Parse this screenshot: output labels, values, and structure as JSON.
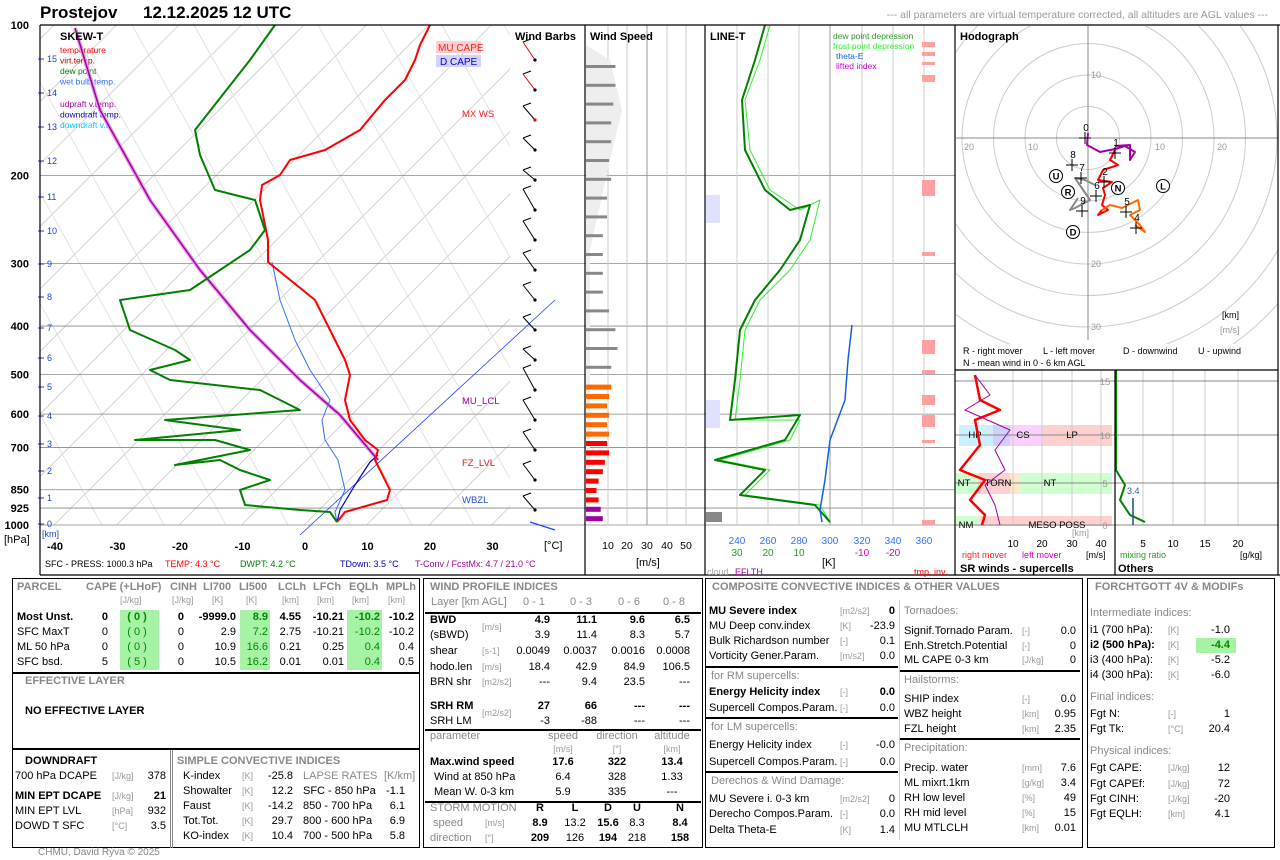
{
  "header": {
    "station": "Prostejov",
    "datetime": "12.12.2025 12 UTC",
    "note": "--- all parameters are virtual temperature corrected, all altitudes are AGL values ---"
  },
  "colors": {
    "temperature": "#ff0000",
    "virt_temp": "#b00000",
    "dew_point": "#008000",
    "wet_bulb": "#3070ff",
    "updraft": "#a000a0",
    "downdraft": "#0000c0",
    "downdraft_vt": "#00c8ff",
    "frost": "#33ee33",
    "theta_e": "#1060e0",
    "lifted_index": "#cc00cc"
  },
  "skewt": {
    "title": "SKEW-T",
    "legend": [
      {
        "label": "temperature",
        "color": "#ff0000"
      },
      {
        "label": "virt.temp.",
        "color": "#b00000"
      },
      {
        "label": "dew point",
        "color": "#008000"
      },
      {
        "label": "wet bulb temp.",
        "color": "#3070ff"
      },
      {
        "label": "udpraft v.temp.",
        "color": "#a000a0"
      },
      {
        "label": "downdraft temp.",
        "color": "#0000c0"
      },
      {
        "label": "downdraft v.t.",
        "color": "#00c8ff"
      }
    ],
    "pressure_labels": [
      "100",
      "200",
      "300",
      "400",
      "500",
      "600",
      "700",
      "850",
      "925",
      "1000"
    ],
    "pressure_unit": "[hPa]",
    "km_labels": [
      "15",
      "14",
      "13",
      "12",
      "11",
      "10",
      "9",
      "8",
      "7",
      "6",
      "5",
      "4",
      "3",
      "2",
      "1",
      "0"
    ],
    "km_unit": "[km]",
    "temp_ticks": [
      "-40",
      "-30",
      "-20",
      "-10",
      "0",
      "10",
      "20",
      "30"
    ],
    "temp_unit": "[°C]",
    "mu_cape": "MU CAPE",
    "d_cape": "D CAPE",
    "mx_ws": "MX WS",
    "mu_lcl": "MU_LCL",
    "fz_lvl": "FZ_LVL",
    "wbzl": "WBZL",
    "sfc_press": "SFC - PRESS: 1000.3 hPa",
    "sfc_temp": "TEMP: 4.3 °C",
    "sfc_dwpt": "DWPT: 4.2 °C",
    "sfc_tdown": "TDown: 3.5 °C",
    "sfc_tconv": "T-Conv / FcstMx: 4.7 / 21.0 °C"
  },
  "wind_barbs": {
    "title": "Wind Barbs"
  },
  "wind_speed": {
    "title": "Wind Speed",
    "ticks": [
      "10",
      "20",
      "30",
      "40",
      "50"
    ],
    "unit": "[m/s]"
  },
  "line_t": {
    "title": "LINE-T",
    "legend": [
      {
        "label": "dew point depression",
        "color": "#2a9a2a"
      },
      {
        "label": "frost point depression",
        "color": "#33ee33"
      },
      {
        "label": "theta-E",
        "color": "#1060e0"
      },
      {
        "label": "lifted index",
        "color": "#cc00cc"
      }
    ],
    "ticks_k": [
      "240",
      "260",
      "280",
      "300",
      "320",
      "340",
      "360"
    ],
    "ticks_dd": [
      "30",
      "20",
      "10"
    ],
    "ticks_li": [
      "-10",
      "-20"
    ],
    "unit": "[K]",
    "cloud": "cloud",
    "eflth": "EFLTH",
    "tmp_inv": "tmp. inv."
  },
  "hodograph": {
    "title": "Hodograph",
    "ring_labels": [
      "20",
      "10",
      "10",
      "20",
      "10",
      "20",
      "30"
    ],
    "km_marks": [
      "0",
      "1",
      "2",
      "4",
      "5",
      "6",
      "7",
      "8",
      "9"
    ],
    "markers": [
      "R",
      "L",
      "D",
      "U",
      "N"
    ],
    "unit_km": "[km]",
    "unit_ms": "[m/s]",
    "legend": [
      "R - right mover",
      "L - left mover",
      "D - downwind",
      "U - upwind",
      "N - mean wind in 0 - 6 km AGL"
    ]
  },
  "sr_winds": {
    "title": "SR winds - supercells",
    "ticks": [
      "10",
      "20",
      "30",
      "40"
    ],
    "km_ticks": [
      "15",
      "10",
      "5",
      "0"
    ],
    "unit_km": "[km]",
    "unit": "[m/s]",
    "right_mover": "right mover",
    "left_mover": "left mover",
    "zones": [
      "HP",
      "CS",
      "LP",
      "NT",
      "TORN",
      "NT",
      "NM",
      "MESO POSS"
    ]
  },
  "others": {
    "title": "Others",
    "ticks": [
      "5",
      "10",
      "15",
      "20"
    ],
    "unit": "[g/kg]",
    "mixing_ratio": "mixing ratio",
    "value": "3.4"
  },
  "parcel": {
    "headers": [
      "PARCEL",
      "CAPE (+LHoF)",
      "CINH",
      "LI700",
      "LI500",
      "LCLh",
      "LFCh",
      "EQLh",
      "MPLh"
    ],
    "units": [
      "[J/kg]",
      "[J/kg]",
      "[K]",
      "[K]",
      "[km]",
      "[km]",
      "[km]",
      "[km]"
    ],
    "rows": [
      {
        "name": "Most Unst.",
        "cape": "0",
        "lhof": "( 0 )",
        "cinh": "0",
        "li700": "-9999.0",
        "li500": "8.9",
        "lclh": "4.55",
        "lfch": "-10.21",
        "eqlh": "-10.2",
        "mplh": "-10.2"
      },
      {
        "name": "SFC MaxT",
        "cape": "0",
        "lhof": "( 0 )",
        "cinh": "0",
        "li700": "2.9",
        "li500": "7.2",
        "lclh": "2.75",
        "lfch": "-10.21",
        "eqlh": "-10.2",
        "mplh": "-10.2"
      },
      {
        "name": "ML 50 hPa",
        "cape": "0",
        "lhof": "( 0 )",
        "cinh": "0",
        "li700": "10.9",
        "li500": "16.6",
        "lclh": "0.21",
        "lfch": "0.25",
        "eqlh": "0.4",
        "mplh": "0.4"
      },
      {
        "name": "SFC bsd.",
        "cape": "5",
        "lhof": "( 5 )",
        "cinh": "0",
        "li700": "10.5",
        "li500": "16.2",
        "lclh": "0.01",
        "lfch": "0.01",
        "eqlh": "0.4",
        "mplh": "0.5"
      }
    ]
  },
  "effective": {
    "title": "EFFECTIVE LAYER",
    "text": "NO EFFECTIVE LAYER"
  },
  "downdraft": {
    "title": "DOWNDRAFT",
    "rows": [
      {
        "label": "700 hPa DCAPE",
        "unit": "[J/kg]",
        "value": "378"
      },
      {
        "label": "MIN EPT DCAPE",
        "unit": "[J/kg]",
        "value": "21"
      },
      {
        "label": "MIN EPT LVL",
        "unit": "[hPa]",
        "value": "932"
      },
      {
        "label": "DOWD T SFC",
        "unit": "[°C]",
        "value": "3.5"
      }
    ]
  },
  "simple": {
    "title": "SIMPLE CONVECTIVE INDICES",
    "rows": [
      {
        "label": "K-index",
        "unit": "[K]",
        "value": "-25.8"
      },
      {
        "label": "Showalter",
        "unit": "[K]",
        "value": "12.2"
      },
      {
        "label": "Faust",
        "unit": "[K]",
        "value": "-14.2"
      },
      {
        "label": "Tot.Tot.",
        "unit": "[K]",
        "value": "29.7"
      },
      {
        "label": "KO-index",
        "unit": "[K]",
        "value": "10.4"
      }
    ],
    "lapse_title": "LAPSE RATES",
    "lapse_unit": "[K/km]",
    "lapse": [
      {
        "label": "SFC - 850 hPa",
        "value": "-1.1"
      },
      {
        "label": "850 - 700 hPa",
        "value": "6.1"
      },
      {
        "label": "800 - 600 hPa",
        "value": "6.9"
      },
      {
        "label": "700 - 500 hPa",
        "value": "5.8"
      }
    ]
  },
  "wind_profile": {
    "title": "WIND PROFILE INDICES",
    "layer_label": "Layer [km AGL]",
    "layers": [
      "0 - 1",
      "0 - 3",
      "0 - 6",
      "0 - 8"
    ],
    "rows": [
      {
        "label": "BWD",
        "unit": "[m/s]",
        "values": [
          "4.9",
          "11.1",
          "9.6",
          "6.5"
        ]
      },
      {
        "label": "(sBWD)",
        "unit": "",
        "values": [
          "3.9",
          "11.4",
          "8.3",
          "5.7"
        ]
      },
      {
        "label": "shear",
        "unit": "[s-1]",
        "values": [
          "0.0049",
          "0.0037",
          "0.0016",
          "0.0008"
        ]
      },
      {
        "label": "hodo.len",
        "unit": "[m/s]",
        "values": [
          "18.4",
          "42.9",
          "84.9",
          "106.5"
        ]
      },
      {
        "label": "BRN shr",
        "unit": "[m2/s2]",
        "values": [
          "---",
          "9.4",
          "23.5",
          "---"
        ]
      },
      {
        "label": "SRH RM",
        "unit": "[m2/s2]",
        "values": [
          "27",
          "66",
          "---",
          "---"
        ]
      },
      {
        "label": "SRH LM",
        "unit": "",
        "values": [
          "-3",
          "-88",
          "---",
          "---"
        ]
      }
    ],
    "param_headers": [
      "parameter",
      "speed",
      "direction",
      "altitude"
    ],
    "param_units": [
      "[m/s]",
      "[°]",
      "[km]"
    ],
    "params": [
      {
        "label": "Max.wind speed",
        "values": [
          "17.6",
          "322",
          "13.4"
        ]
      },
      {
        "label": "Wind at 850 hPa",
        "values": [
          "6.4",
          "328",
          "1.33"
        ]
      },
      {
        "label": "Mean W. 0-3 km",
        "values": [
          "5.9",
          "335",
          "---"
        ]
      }
    ],
    "storm_title": "STORM MOTION",
    "storm_cols": [
      "R",
      "L",
      "D",
      "U",
      "N"
    ],
    "storm_speed_label": "speed",
    "storm_speed_unit": "[m/s]",
    "storm_speed": [
      "8.9",
      "13.2",
      "15.6",
      "8.3",
      "8.4"
    ],
    "storm_dir_label": "direction",
    "storm_dir_unit": "[°]",
    "storm_dir": [
      "209",
      "126",
      "194",
      "218",
      "158"
    ]
  },
  "composite": {
    "title": "COMPOSITE CONVECTIVE INDICES & OTHER VALUES",
    "left": [
      {
        "label": "MU Severe index",
        "unit": "[m2/s2]",
        "value": "0",
        "bold": true
      },
      {
        "label": "MU Deep conv.index",
        "unit": "[K]",
        "value": "-23.9"
      },
      {
        "label": "Bulk Richardson number",
        "unit": "[-]",
        "value": "0.1"
      },
      {
        "label": "Vorticity Gener.Param.",
        "unit": "[m/s2]",
        "value": "0.0"
      },
      {
        "section": "for RM supercells:"
      },
      {
        "label": "Energy Helicity index",
        "unit": "[-]",
        "value": "0.0",
        "bold": true
      },
      {
        "label": "Supercell Compos.Param.",
        "unit": "[-]",
        "value": "0.0"
      },
      {
        "section": "for LM supercells:"
      },
      {
        "label": "Energy Helicity index",
        "unit": "[-]",
        "value": "-0.0"
      },
      {
        "label": "Supercell Compos.Param.",
        "unit": "[-]",
        "value": "0.0"
      },
      {
        "section": "Derechos & Wind Damage:"
      },
      {
        "label": "MU Severe i. 0-3 km",
        "unit": "[m2/s2]",
        "value": "0"
      },
      {
        "label": "Derecho Compos.Param.",
        "unit": "[-]",
        "value": "0.0"
      },
      {
        "label": "Delta Theta-E",
        "unit": "[K]",
        "value": "1.4"
      }
    ],
    "right": [
      {
        "section": "Tornadoes:"
      },
      {
        "label": "Signif.Tornado Param.",
        "unit": "[-]",
        "value": "0.0"
      },
      {
        "label": "Enh.Stretch.Potential",
        "unit": "[-]",
        "value": "0"
      },
      {
        "label": "ML CAPE 0-3 km",
        "unit": "[J/kg]",
        "value": "0"
      },
      {
        "section": "Hailstorms:"
      },
      {
        "label": "SHIP index",
        "unit": "[-]",
        "value": "0.0"
      },
      {
        "label": "WBZ height",
        "unit": "[km]",
        "value": "0.95"
      },
      {
        "label": "FZL height",
        "unit": "[km]",
        "value": "2.35"
      },
      {
        "section": "Precipitation:"
      },
      {
        "label": "Precip. water",
        "unit": "[mm]",
        "value": "7.6"
      },
      {
        "label": "ML mixrt.1km",
        "unit": "[g/kg]",
        "value": "3.4"
      },
      {
        "label": "RH low level",
        "unit": "[%]",
        "value": "49"
      },
      {
        "label": "RH mid level",
        "unit": "[%]",
        "value": "15"
      },
      {
        "label": "MU MTLCLH",
        "unit": "[km]",
        "value": "0.01"
      }
    ]
  },
  "forchtgott": {
    "title": "FORCHTGOTT 4V & MODIFs",
    "items": [
      {
        "section": "Intermediate indices:"
      },
      {
        "label": "i1 (700 hPa):",
        "unit": "[K]",
        "value": "-1.0"
      },
      {
        "label": "i2 (500 hPa):",
        "unit": "[K]",
        "value": "-4.4",
        "bold": true,
        "highlight": true
      },
      {
        "label": "i3 (400 hPa):",
        "unit": "[K]",
        "value": "-5.2"
      },
      {
        "label": "i4 (300 hPa):",
        "unit": "[K]",
        "value": "-6.0"
      },
      {
        "section": "Final indices:"
      },
      {
        "label": "Fgt N:",
        "unit": "[-]",
        "value": "1"
      },
      {
        "label": "Fgt Tk:",
        "unit": "[°C]",
        "value": "20.4"
      },
      {
        "section": "Physical indices:"
      },
      {
        "label": "Fgt CAPE:",
        "unit": "[J/kg]",
        "value": "12"
      },
      {
        "label": "Fgt CAPEf:",
        "unit": "[J/kg]",
        "value": "72"
      },
      {
        "label": "Fgt CINH:",
        "unit": "[J/kg]",
        "value": "-20"
      },
      {
        "label": "Fgt EQLH:",
        "unit": "[km]",
        "value": "4.1"
      }
    ]
  },
  "footer": "CHMU, David Rýva © 2025"
}
